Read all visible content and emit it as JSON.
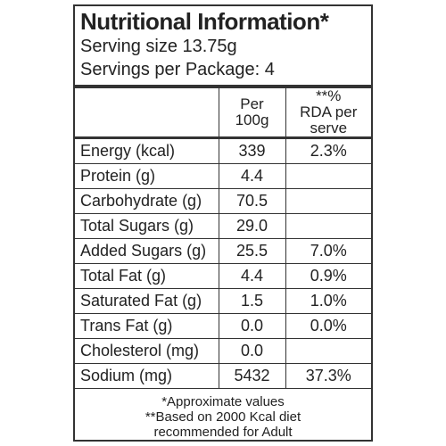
{
  "header": {
    "title": "Nutritional Information*",
    "serving_size": "Serving size 13.75g",
    "servings_per_package": "Servings per Package: 4"
  },
  "table": {
    "columns": [
      "Per 100g",
      "**% RDA per serve"
    ],
    "rows": [
      [
        "Energy (kcal)",
        "339",
        "2.3%"
      ],
      [
        "Protein (g)",
        "4.4"
      ],
      [
        "Carbohydrate (g)",
        "70.5"
      ],
      [
        "Total Sugars (g)",
        "29.0"
      ],
      [
        "Added Sugars (g)",
        "25.5",
        "7.0%"
      ],
      [
        "Total Fat (g)",
        "4.4",
        "0.9%"
      ],
      [
        "Saturated Fat (g)",
        "1.5",
        "1.0%"
      ],
      [
        "Trans Fat (g)",
        "0.0",
        "0.0%"
      ],
      [
        "Cholesterol (mg)",
        "0.0"
      ],
      [
        "Sodium (mg)",
        "5432",
        "37.3%"
      ]
    ]
  },
  "footnotes": [
    "*Approximate values",
    "**Based on 2000 Kcal diet recommended for Adult"
  ]
}
